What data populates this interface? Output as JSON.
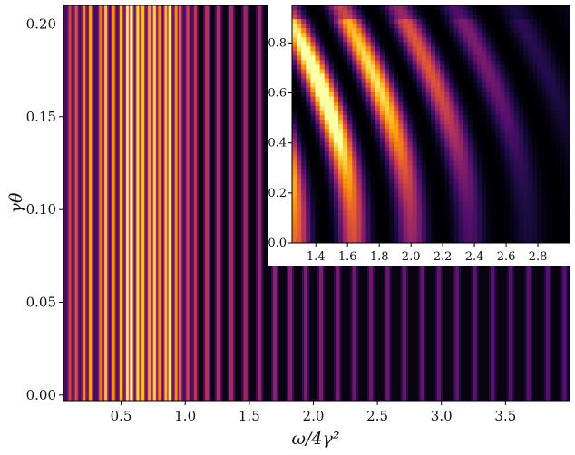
{
  "chart_data": [
    {
      "type": "heatmap",
      "role": "main",
      "title": "",
      "xlabel": "ω/4γ²",
      "ylabel": "γθ",
      "xlim": [
        0.05,
        4.0
      ],
      "ylim": [
        -0.003,
        0.21
      ],
      "x_ticks": [
        0.5,
        1.0,
        1.5,
        2.0,
        2.5,
        3.0,
        3.5
      ],
      "x_tick_labels": [
        "0.5",
        "1.0",
        "1.5",
        "2.0",
        "2.5",
        "3.0",
        "3.5"
      ],
      "y_ticks": [
        0.0,
        0.05,
        0.1,
        0.15,
        0.2
      ],
      "y_tick_labels": [
        "0.00",
        "0.05",
        "0.10",
        "0.15",
        "0.20"
      ],
      "colormap": "inferno",
      "note_pattern": "intensity varies along x only; dense bright fringes for x < 1.1, narrow purple fringes decaying for x > 1.1",
      "bright_fringes_x": [
        0.1,
        0.15,
        0.21,
        0.26,
        0.34,
        0.38,
        0.44,
        0.5,
        0.55,
        0.58,
        0.63,
        0.67,
        0.72,
        0.76,
        0.8,
        0.85,
        0.88,
        0.93,
        0.96,
        1.02,
        1.08
      ],
      "bright_fringes_intensity": [
        0.55,
        0.6,
        0.75,
        0.8,
        0.7,
        0.85,
        0.75,
        0.85,
        0.95,
        1.0,
        0.9,
        0.85,
        0.8,
        0.9,
        0.75,
        0.85,
        0.95,
        0.75,
        0.65,
        0.55,
        0.5
      ],
      "weak_fringes_x": [
        1.17,
        1.26,
        1.36,
        1.47,
        1.58,
        1.7,
        1.82,
        1.94,
        2.06,
        2.19,
        2.32,
        2.45,
        2.58,
        2.71,
        2.85,
        2.98,
        3.12,
        3.26,
        3.4,
        3.54,
        3.68,
        3.83,
        3.96
      ],
      "weak_fringes_intensity": [
        0.48,
        0.46,
        0.44,
        0.42,
        0.4,
        0.38,
        0.36,
        0.35,
        0.34,
        0.33,
        0.32,
        0.31,
        0.3,
        0.3,
        0.29,
        0.28,
        0.28,
        0.27,
        0.27,
        0.26,
        0.26,
        0.25,
        0.25
      ]
    },
    {
      "type": "heatmap",
      "role": "inset",
      "title": "",
      "xlabel": "",
      "ylabel": "",
      "xlim": [
        1.25,
        3.0
      ],
      "ylim": [
        0.0,
        0.95
      ],
      "x_ticks": [
        1.4,
        1.6,
        1.8,
        2.0,
        2.2,
        2.4,
        2.6,
        2.8
      ],
      "x_tick_labels": [
        "1.4",
        "1.6",
        "1.8",
        "2.0",
        "2.2",
        "2.4",
        "2.6",
        "2.8"
      ],
      "y_ticks": [
        0.0,
        0.2,
        0.4,
        0.6,
        0.8
      ],
      "y_tick_labels": [
        "0.0",
        "0.2",
        "0.4",
        "0.6",
        "0.8"
      ],
      "colormap": "inferno",
      "note_pattern": "curved interference fringes bending toward lower x with increasing y; brightest near x≈1.27, y≈0.6",
      "fringe_base_x": [
        1.27,
        1.53,
        1.72,
        1.9,
        2.08,
        2.25,
        2.41,
        2.57,
        2.72,
        2.87,
        3.0
      ]
    }
  ]
}
